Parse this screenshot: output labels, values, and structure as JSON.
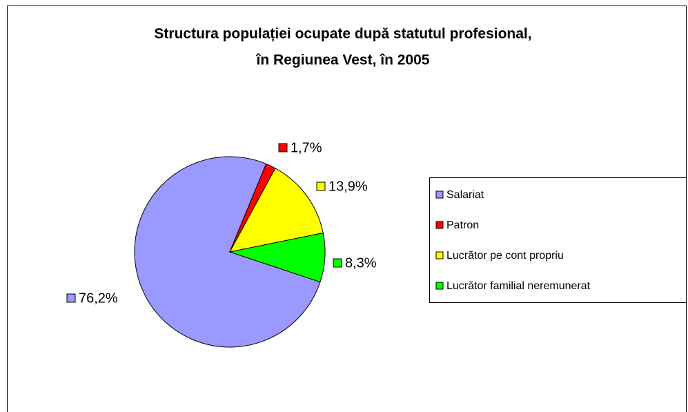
{
  "chart_data": {
    "type": "pie",
    "title": [
      "Structura populației ocupate după statutul profesional,",
      "în Regiunea Vest, în 2005"
    ],
    "categories": [
      "Salariat",
      "Patron",
      "Lucrător pe cont propriu",
      "Lucrător familial neremunerat"
    ],
    "values": [
      76.2,
      1.7,
      13.9,
      8.3
    ],
    "value_labels": [
      "76,2%",
      "1,7%",
      "13,9%",
      "8,3%"
    ],
    "colors": [
      "#9999ff",
      "#ff0000",
      "#ffff00",
      "#00ff00"
    ],
    "legend": "right"
  }
}
